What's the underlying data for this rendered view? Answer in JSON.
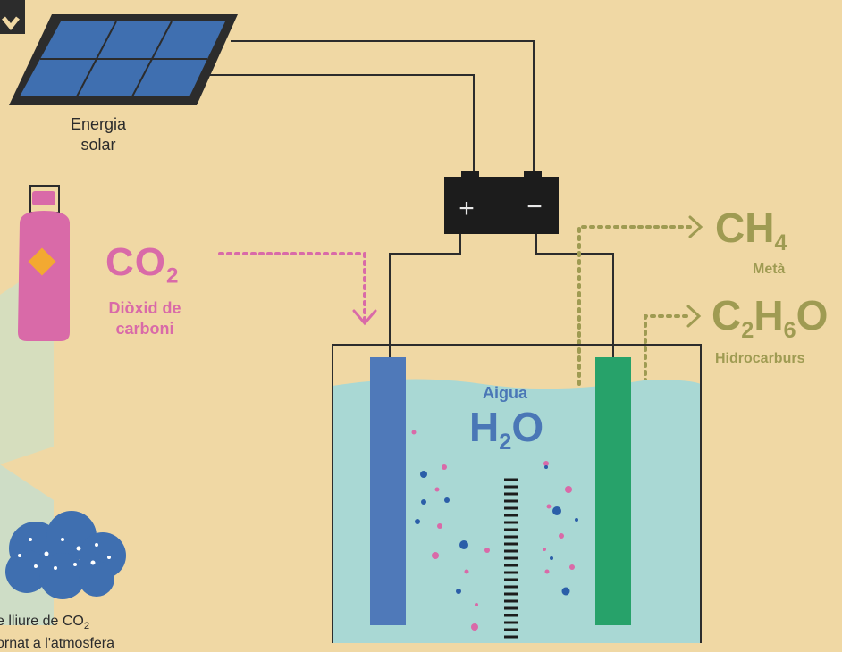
{
  "solar": {
    "label_line1": "Energia",
    "label_line2": "solar"
  },
  "battery": {
    "plus": "+",
    "minus": "−"
  },
  "co2": {
    "symbol": "CO",
    "subscript": "2",
    "name_line1": "Diòxid de",
    "name_line2": "carboni"
  },
  "methane": {
    "symbol_c": "CH",
    "subscript_h": "4",
    "name": "Metà"
  },
  "hydrocarbons": {
    "part1": "C",
    "sub1": "2",
    "part2": "H",
    "sub2": "6",
    "part3": "O",
    "name": "Hidrocarburs"
  },
  "water": {
    "name": "Aigua",
    "symbol_h": "H",
    "subscript": "2",
    "symbol_o": "O"
  },
  "bottom_note": {
    "line1_prefix": "e lliure de CO",
    "line1_sub": "2",
    "line2": "ornat a l'atmosfera"
  },
  "colors": {
    "background": "#f0d8a4",
    "co2": "#d96aa8",
    "products": "#9f9b52",
    "water": "#4a77b6",
    "solar_panel": "#3f6fb0",
    "electrode_left": "#4f79b9",
    "electrode_right": "#27a26a",
    "liquid": "#a9d8d4"
  },
  "icons": [
    "solar-panel-icon",
    "gas-cylinder-icon",
    "battery-icon",
    "cloud-icon",
    "electrolysis-tank-icon"
  ]
}
